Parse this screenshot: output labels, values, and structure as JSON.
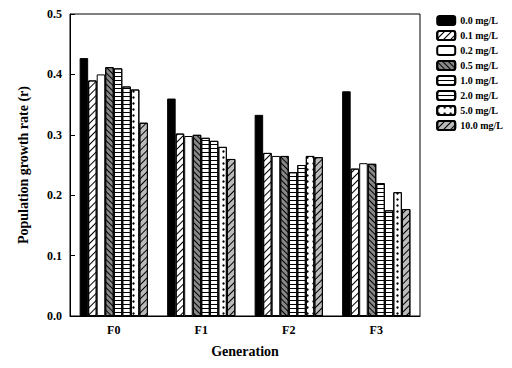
{
  "chart_data": {
    "type": "bar",
    "x_label": "Generation",
    "y_label": "Population growth rate (r)",
    "categories": [
      "F0",
      "F1",
      "F2",
      "F3"
    ],
    "series": [
      {
        "name": "0.0 mg/L",
        "color": "#000000",
        "values": [
          0.427,
          0.36,
          0.333,
          0.372
        ]
      },
      {
        "name": "0.1 mg/L",
        "color": "#ffffff",
        "values": [
          0.39,
          0.302,
          0.27,
          0.244
        ]
      },
      {
        "name": "0.2 mg/L",
        "color": "#ffffff",
        "values": [
          0.4,
          0.298,
          0.265,
          0.253
        ]
      },
      {
        "name": "0.5 mg/L",
        "color": "#888888",
        "values": [
          0.412,
          0.3,
          0.265,
          0.252
        ]
      },
      {
        "name": "1.0 mg/L",
        "color": "#ffffff",
        "values": [
          0.41,
          0.295,
          0.238,
          0.22
        ]
      },
      {
        "name": "2.0 mg/L",
        "color": "#ffffff",
        "values": [
          0.38,
          0.29,
          0.25,
          0.175
        ]
      },
      {
        "name": "5.0 mg/L",
        "color": "#ffffff",
        "values": [
          0.375,
          0.28,
          0.265,
          0.205
        ]
      },
      {
        "name": "10.0 mg/L",
        "color": "#bbbbbb",
        "values": [
          0.32,
          0.26,
          0.263,
          0.177
        ]
      }
    ],
    "ylim": [
      0,
      0.5
    ],
    "yticks": [
      {
        "value": 0,
        "label": "0.0"
      },
      {
        "value": 0.1,
        "label": "0.1"
      },
      {
        "value": 0.2,
        "label": "0.2"
      },
      {
        "value": 0.3,
        "label": "0.3"
      },
      {
        "value": 0.4,
        "label": "0.4"
      },
      {
        "value": 0.5,
        "label": "0.5"
      }
    ],
    "legend": "right",
    "grid": false
  }
}
